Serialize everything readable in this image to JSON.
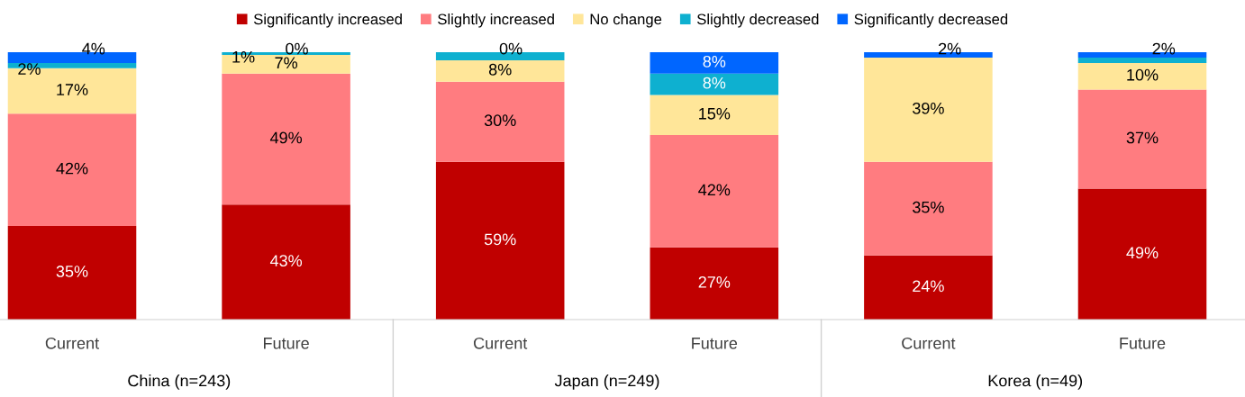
{
  "chart_data": {
    "type": "bar",
    "stacked": true,
    "legend": "top",
    "categories": [
      "Current",
      "Future",
      "Current",
      "Future",
      "Current",
      "Future"
    ],
    "series": [
      {
        "name": "Significantly increased",
        "color": "#c00000",
        "values": [
          35,
          43,
          59,
          27,
          24,
          49
        ],
        "value_labels": [
          "35%",
          "43%",
          "59%",
          "27%",
          "24%",
          "49%"
        ]
      },
      {
        "name": "Slightly increased",
        "color": "#ff7c80",
        "values": [
          42,
          49,
          30,
          42,
          35,
          37
        ],
        "value_labels": [
          "42%",
          "49%",
          "30%",
          "42%",
          "35%",
          "37%"
        ]
      },
      {
        "name": "No change",
        "color": "#ffe699",
        "values": [
          17,
          7,
          8,
          15,
          39,
          10
        ],
        "value_labels": [
          "17%",
          "7%",
          "8%",
          "15%",
          "39%",
          "10%"
        ]
      },
      {
        "name": "Slightly decreased",
        "color": "#0eb0d0",
        "values": [
          2,
          1,
          3,
          8,
          0,
          2
        ],
        "value_labels": [
          "2%",
          "1%",
          null,
          "8%",
          null,
          null
        ]
      },
      {
        "name": "Significantly decreased",
        "color": "#0066ff",
        "values": [
          4,
          0,
          0,
          8,
          2,
          2
        ],
        "value_labels": [
          "4%",
          "0%",
          "0%",
          "8%",
          "2%",
          "2%"
        ]
      }
    ],
    "annotations": [
      "China (n=243)",
      "Japan (n=249)",
      "Korea (n=49)"
    ]
  }
}
